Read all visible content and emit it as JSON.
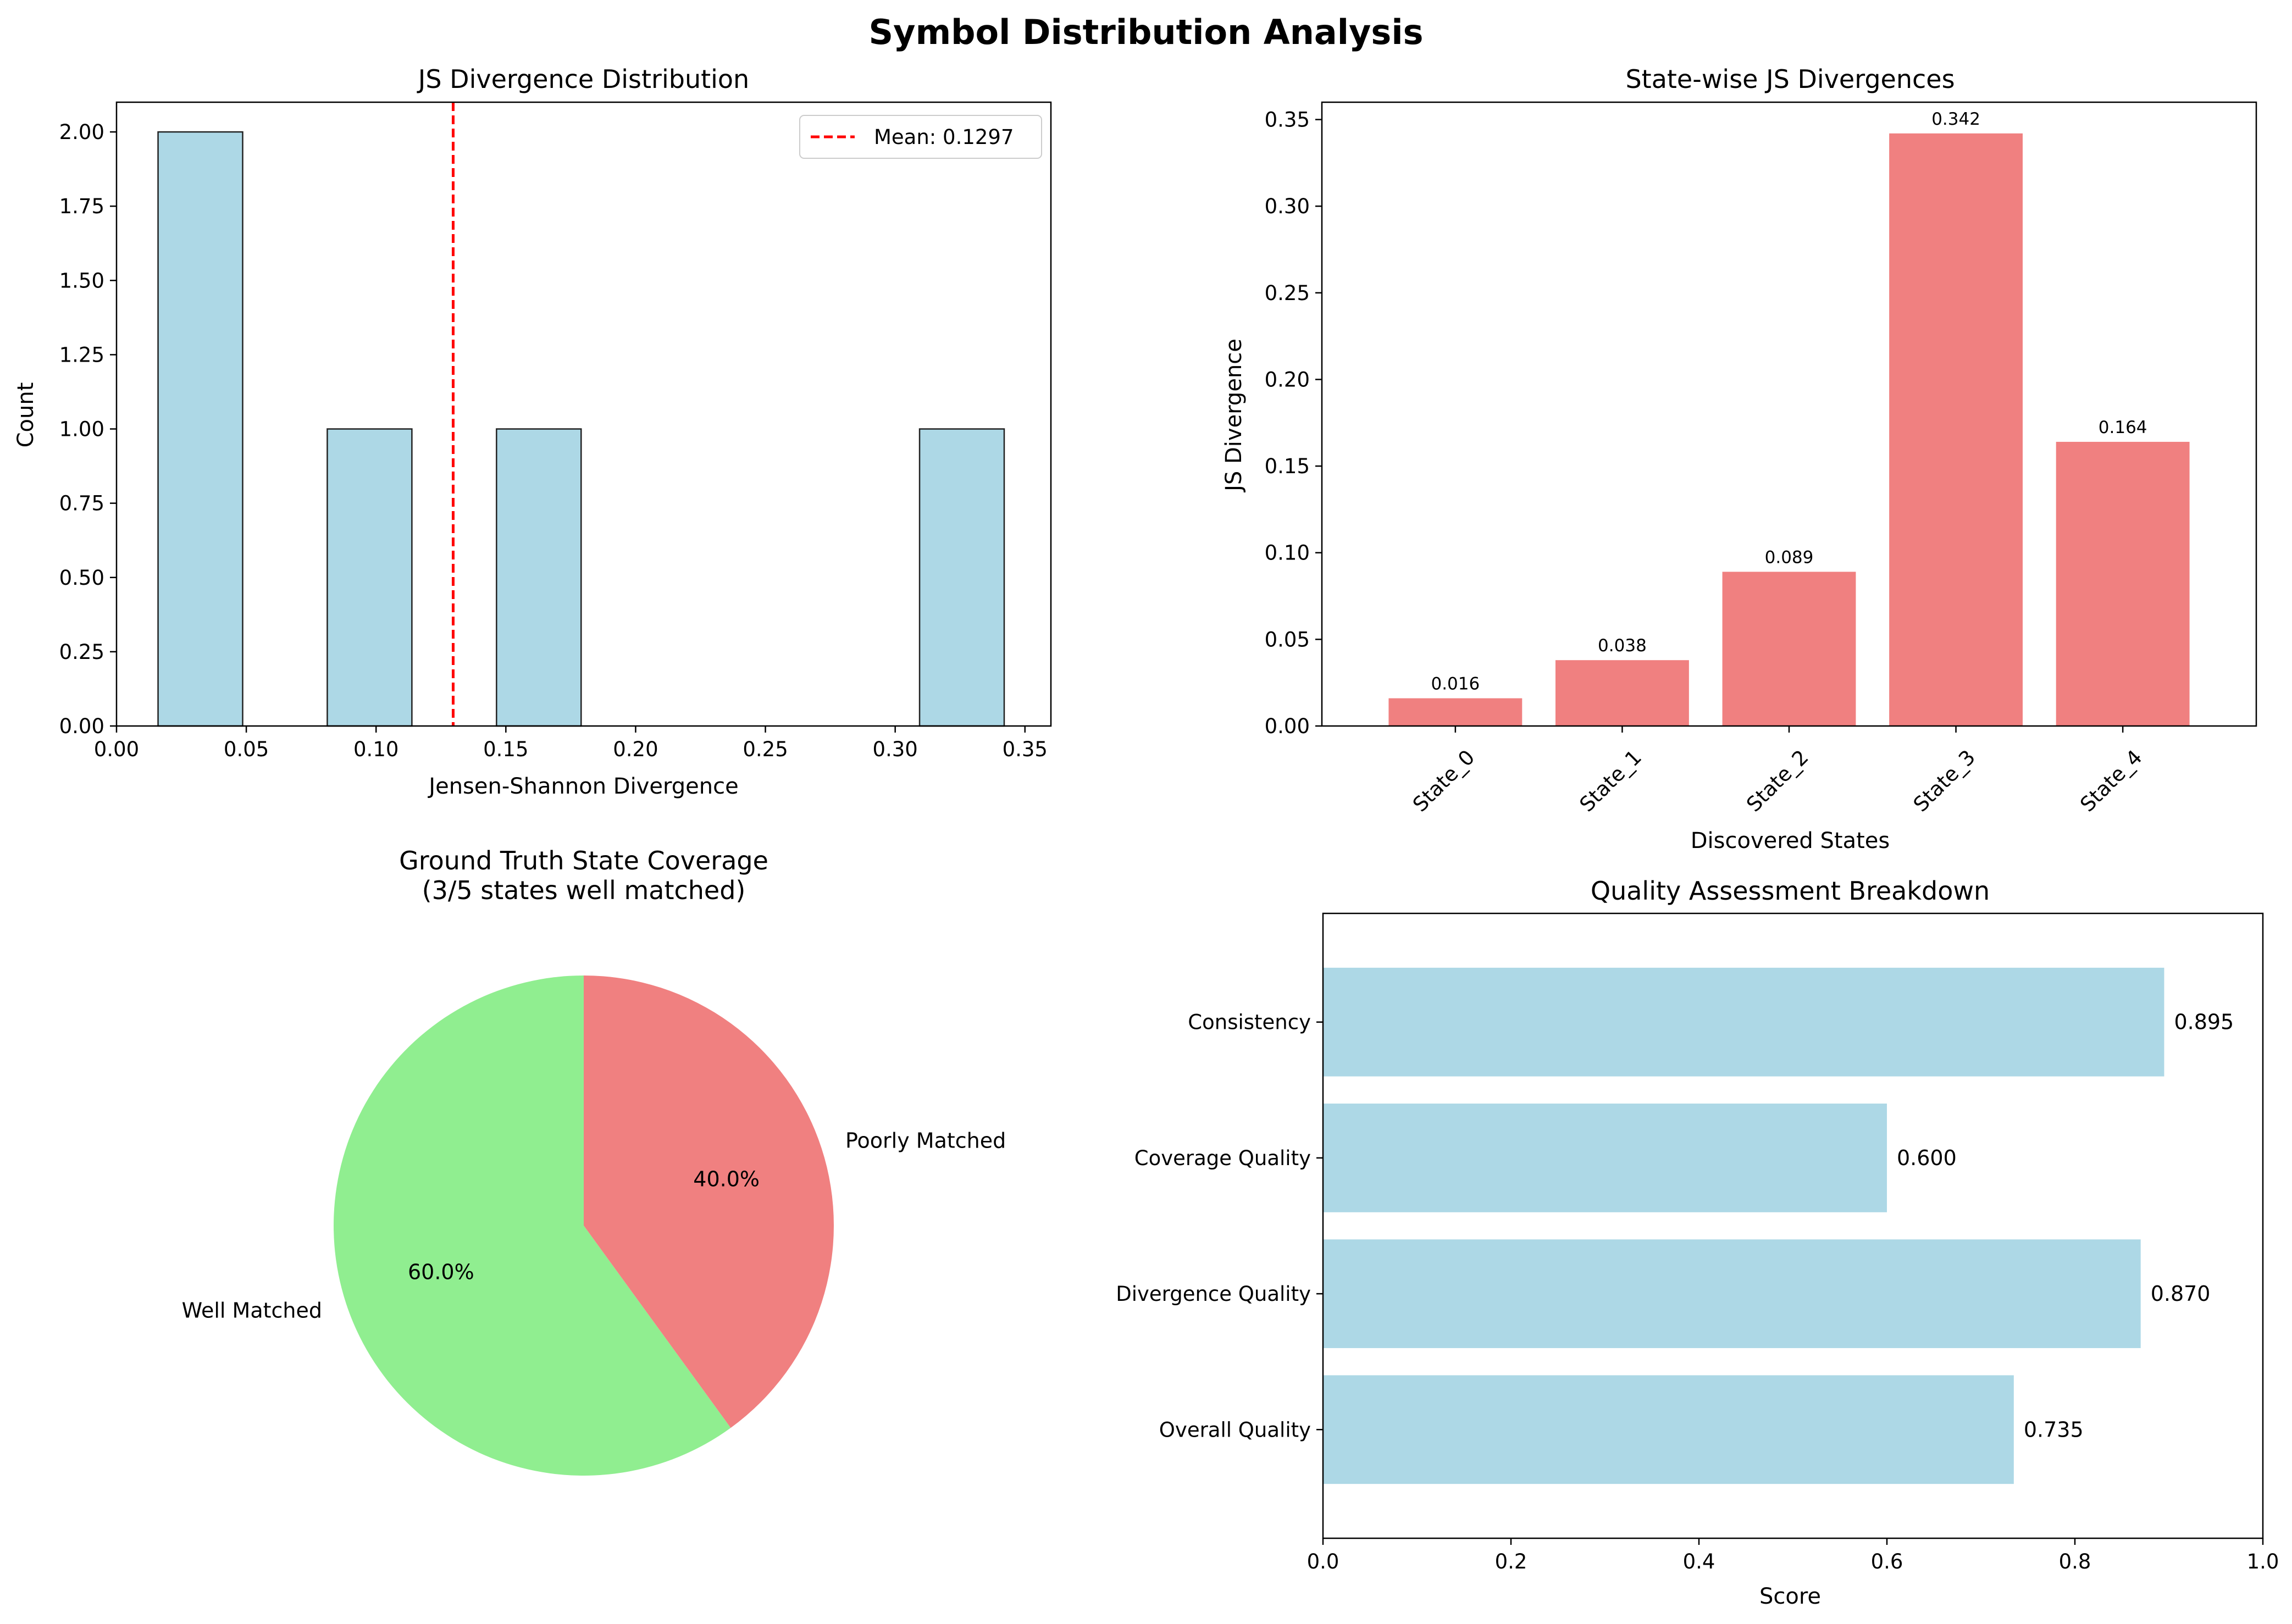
{
  "figure": {
    "title": "Symbol Distribution Analysis"
  },
  "chart_data": [
    {
      "type": "bar",
      "subtype": "histogram",
      "title": "JS Divergence Distribution",
      "xlabel": "Jensen-Shannon Divergence",
      "ylabel": "Count",
      "xlim": [
        0.0,
        0.36
      ],
      "ylim": [
        0.0,
        2.1
      ],
      "xticks": [
        0.0,
        0.05,
        0.1,
        0.15,
        0.2,
        0.25,
        0.3,
        0.35
      ],
      "xtick_labels": [
        "0.00",
        "0.05",
        "0.10",
        "0.15",
        "0.20",
        "0.25",
        "0.30",
        "0.35"
      ],
      "yticks": [
        0.0,
        0.25,
        0.5,
        0.75,
        1.0,
        1.25,
        1.5,
        1.75,
        2.0
      ],
      "ytick_labels": [
        "0.00",
        "0.25",
        "0.50",
        "0.75",
        "1.00",
        "1.25",
        "1.50",
        "1.75",
        "2.00"
      ],
      "bins": [
        {
          "start": 0.016,
          "end": 0.0486,
          "count": 2
        },
        {
          "start": 0.0486,
          "end": 0.0812,
          "count": 0
        },
        {
          "start": 0.0812,
          "end": 0.1138,
          "count": 1
        },
        {
          "start": 0.1138,
          "end": 0.1464,
          "count": 0
        },
        {
          "start": 0.1464,
          "end": 0.179,
          "count": 1
        },
        {
          "start": 0.179,
          "end": 0.2116,
          "count": 0
        },
        {
          "start": 0.2116,
          "end": 0.2442,
          "count": 0
        },
        {
          "start": 0.2442,
          "end": 0.2768,
          "count": 0
        },
        {
          "start": 0.2768,
          "end": 0.3094,
          "count": 0
        },
        {
          "start": 0.3094,
          "end": 0.342,
          "count": 1
        }
      ],
      "mean_line": {
        "value": 0.1297,
        "label": "Mean: 0.1297",
        "color": "#ff0000"
      },
      "bar_color": "#add8e6",
      "edge_color": "#000000",
      "legend": {
        "position": "upper right"
      }
    },
    {
      "type": "bar",
      "title": "State-wise JS Divergences",
      "xlabel": "Discovered States",
      "ylabel": "JS Divergence",
      "categories": [
        "State_0",
        "State_1",
        "State_2",
        "State_3",
        "State_4"
      ],
      "values": [
        0.016,
        0.038,
        0.089,
        0.342,
        0.164
      ],
      "value_labels": [
        "0.016",
        "0.038",
        "0.089",
        "0.342",
        "0.164"
      ],
      "ylim": [
        0.0,
        0.36
      ],
      "yticks": [
        0.0,
        0.05,
        0.1,
        0.15,
        0.2,
        0.25,
        0.3,
        0.35
      ],
      "ytick_labels": [
        "0.00",
        "0.05",
        "0.10",
        "0.15",
        "0.20",
        "0.25",
        "0.30",
        "0.35"
      ],
      "bar_color": "#f08080",
      "xtick_rotation": 45
    },
    {
      "type": "pie",
      "title": "Ground Truth State Coverage",
      "subtitle": "(3/5 states well matched)",
      "slices": [
        {
          "label": "Well Matched",
          "value": 60.0,
          "pct_label": "60.0%",
          "color": "#90ee90"
        },
        {
          "label": "Poorly Matched",
          "value": 40.0,
          "pct_label": "40.0%",
          "color": "#f08080"
        }
      ],
      "start_angle_deg": 90
    },
    {
      "type": "bar",
      "orientation": "horizontal",
      "title": "Quality Assessment Breakdown",
      "xlabel": "Score",
      "categories": [
        "Consistency",
        "Coverage Quality",
        "Divergence Quality",
        "Overall Quality"
      ],
      "values": [
        0.895,
        0.6,
        0.87,
        0.735
      ],
      "value_labels": [
        "0.895",
        "0.600",
        "0.870",
        "0.735"
      ],
      "xlim": [
        0.0,
        1.0
      ],
      "xticks": [
        0.0,
        0.2,
        0.4,
        0.6,
        0.8,
        1.0
      ],
      "xtick_labels": [
        "0.0",
        "0.2",
        "0.4",
        "0.6",
        "0.8",
        "1.0"
      ],
      "bar_color": "#add8e6"
    }
  ]
}
